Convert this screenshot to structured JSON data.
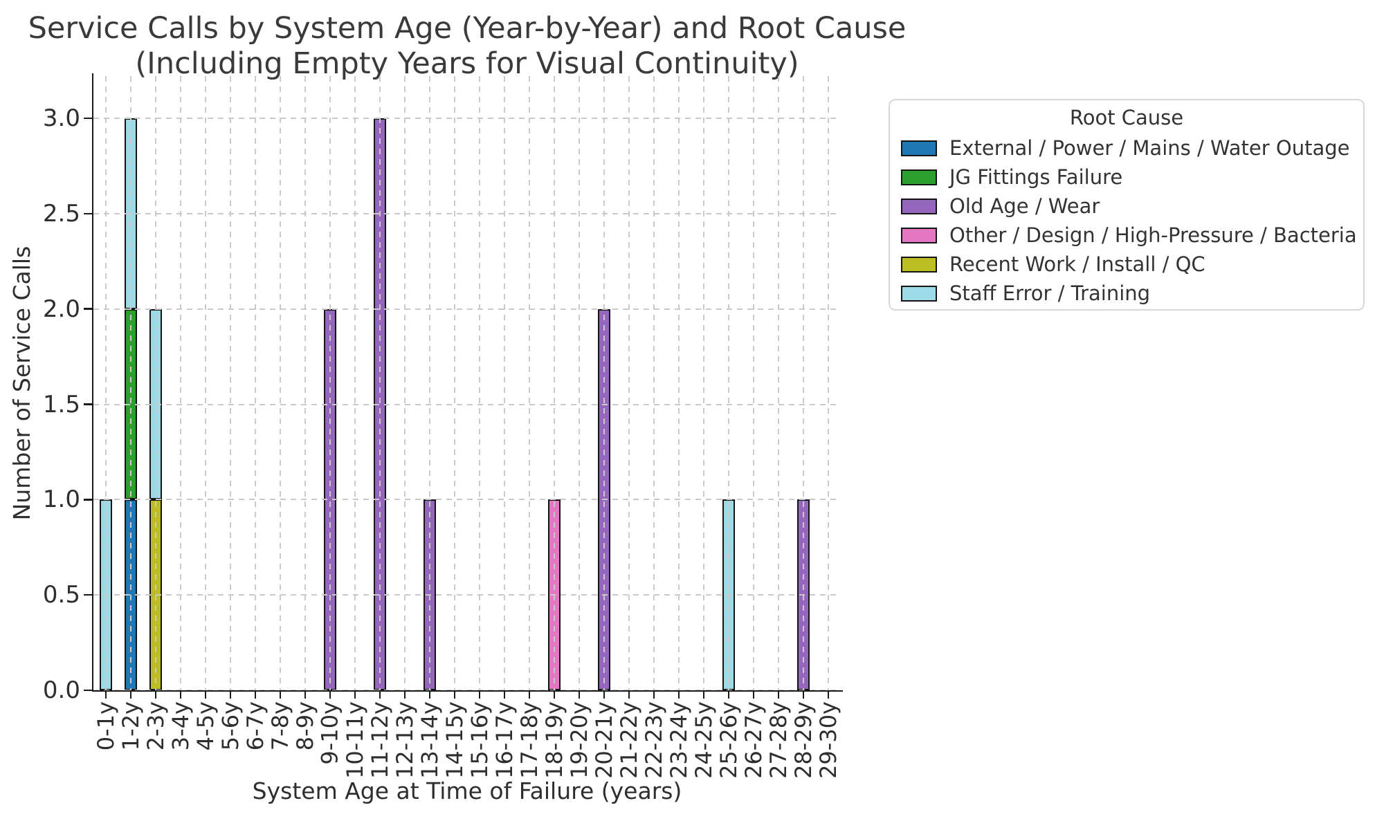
{
  "chart_data": {
    "type": "bar",
    "stacked": true,
    "title": "Service Calls by System Age (Year-by-Year) and Root Cause",
    "subtitle": "(Including Empty Years for Visual Continuity)",
    "xlabel": "System Age at Time of Failure (years)",
    "ylabel": "Number of Service Calls",
    "legend_title": "Root Cause",
    "legend_position": "upper right, outside plot",
    "grid": {
      "style": "dashed",
      "color": "#c9c9c9",
      "both_axes": true,
      "on_top_of_bars": true
    },
    "edge_color": "#141414",
    "ylim": [
      0,
      3.2
    ],
    "yticks": [
      0,
      0.5,
      1,
      1.5,
      2,
      2.5,
      3
    ],
    "ytick_labels": [
      "0.0",
      "0.5",
      "1.0",
      "1.5",
      "2.0",
      "2.5",
      "3.0"
    ],
    "categories": [
      "0-1y",
      "1-2y",
      "2-3y",
      "3-4y",
      "4-5y",
      "5-6y",
      "6-7y",
      "7-8y",
      "8-9y",
      "9-10y",
      "10-11y",
      "11-12y",
      "12-13y",
      "13-14y",
      "14-15y",
      "15-16y",
      "16-17y",
      "17-18y",
      "18-19y",
      "19-20y",
      "20-21y",
      "21-22y",
      "22-23y",
      "23-24y",
      "24-25y",
      "25-26y",
      "26-27y",
      "27-28y",
      "28-29y",
      "29-30y"
    ],
    "series": [
      {
        "name": "External / Power / Mains / Water Outage",
        "color": "#1f77b4",
        "values": [
          0,
          1,
          0,
          0,
          0,
          0,
          0,
          0,
          0,
          0,
          0,
          0,
          0,
          0,
          0,
          0,
          0,
          0,
          0,
          0,
          0,
          0,
          0,
          0,
          0,
          0,
          0,
          0,
          0,
          0
        ]
      },
      {
        "name": "JG Fittings Failure",
        "color": "#2ca02c",
        "values": [
          0,
          1,
          0,
          0,
          0,
          0,
          0,
          0,
          0,
          0,
          0,
          0,
          0,
          0,
          0,
          0,
          0,
          0,
          0,
          0,
          0,
          0,
          0,
          0,
          0,
          0,
          0,
          0,
          0,
          0
        ]
      },
      {
        "name": "Old Age / Wear",
        "color": "#9467bd",
        "values": [
          0,
          0,
          0,
          0,
          0,
          0,
          0,
          0,
          0,
          2,
          0,
          3,
          0,
          1,
          0,
          0,
          0,
          0,
          0,
          0,
          2,
          0,
          0,
          0,
          0,
          0,
          0,
          0,
          1,
          0
        ]
      },
      {
        "name": "Other / Design / High-Pressure / Bacteria",
        "color": "#e377c2",
        "values": [
          0,
          0,
          0,
          0,
          0,
          0,
          0,
          0,
          0,
          0,
          0,
          0,
          0,
          0,
          0,
          0,
          0,
          0,
          1,
          0,
          0,
          0,
          0,
          0,
          0,
          0,
          0,
          0,
          0,
          0
        ]
      },
      {
        "name": "Recent Work / Install / QC",
        "color": "#bcbd22",
        "values": [
          0,
          0,
          1,
          0,
          0,
          0,
          0,
          0,
          0,
          0,
          0,
          0,
          0,
          0,
          0,
          0,
          0,
          0,
          0,
          0,
          0,
          0,
          0,
          0,
          0,
          0,
          0,
          0,
          0,
          0
        ]
      },
      {
        "name": "Staff Error / Training",
        "color": "#9edae5",
        "values": [
          1,
          1,
          1,
          0,
          0,
          0,
          0,
          0,
          0,
          0,
          0,
          0,
          0,
          0,
          0,
          0,
          0,
          0,
          0,
          0,
          0,
          0,
          0,
          0,
          0,
          1,
          0,
          0,
          0,
          0
        ]
      }
    ]
  }
}
